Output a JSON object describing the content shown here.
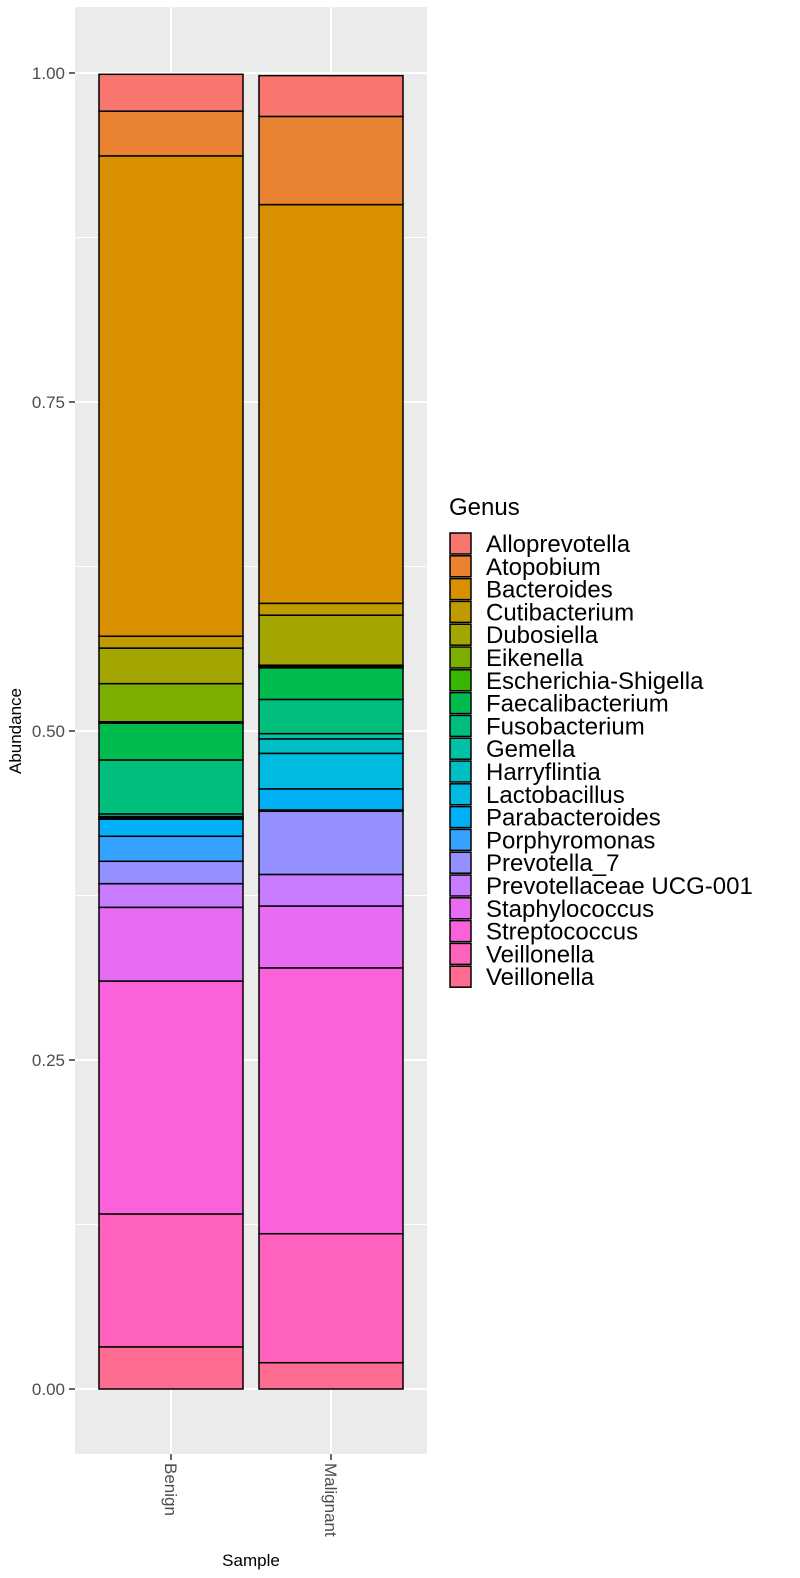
{
  "chart_data": {
    "type": "bar",
    "stacked": true,
    "normalized": true,
    "xlabel": "Sample",
    "ylabel": "Abundance",
    "ylim": [
      0,
      1
    ],
    "yticks": [
      "0.00",
      "0.25",
      "0.50",
      "0.75",
      "1.00"
    ],
    "ytick_values": [
      0,
      0.25,
      0.5,
      0.75,
      1.0
    ],
    "x_tick_rotation": "vertical",
    "categories": [
      "Benign",
      "Malignant"
    ],
    "legend": {
      "title": "Genus",
      "position": "right"
    },
    "grid": true,
    "bar_outline": "#000000",
    "series": [
      {
        "name": "Alloprevotella",
        "color": "#F8766D",
        "values": [
          0.028,
          0.031
        ]
      },
      {
        "name": "Atopobium",
        "color": "#EA8331",
        "values": [
          0.034,
          0.067
        ]
      },
      {
        "name": "Bacteroides",
        "color": "#D89000",
        "values": [
          0.365,
          0.303
        ]
      },
      {
        "name": "Cutibacterium",
        "color": "#C09B00",
        "values": [
          0.009,
          0.009
        ]
      },
      {
        "name": "Dubosiella",
        "color": "#A3A500",
        "values": [
          0.027,
          0.038
        ]
      },
      {
        "name": "Eikenella",
        "color": "#7CAE00",
        "values": [
          0.029,
          0.001
        ]
      },
      {
        "name": "Escherichia-Shigella",
        "color": "#39B600",
        "values": [
          0.001,
          0.001
        ]
      },
      {
        "name": "Faecalibacterium",
        "color": "#00BB4E",
        "values": [
          0.028,
          0.024
        ]
      },
      {
        "name": "Fusobacterium",
        "color": "#00BF7D",
        "values": [
          0.041,
          0.026
        ]
      },
      {
        "name": "Gemella",
        "color": "#00C1A3",
        "values": [
          0.002,
          0.004
        ]
      },
      {
        "name": "Harryflintia",
        "color": "#00BFC4",
        "values": [
          0.001,
          0.011
        ]
      },
      {
        "name": "Lactobacillus",
        "color": "#00BAE0",
        "values": [
          0.001,
          0.027
        ]
      },
      {
        "name": "Parabacteroides",
        "color": "#00B0F6",
        "values": [
          0.013,
          0.016
        ]
      },
      {
        "name": "Porphyromonas",
        "color": "#35A2FF",
        "values": [
          0.019,
          0.001
        ]
      },
      {
        "name": "Prevotella_7",
        "color": "#9590FF",
        "values": [
          0.017,
          0.048
        ]
      },
      {
        "name": "Prevotellaceae UCG-001",
        "color": "#C77CFF",
        "values": [
          0.018,
          0.024
        ]
      },
      {
        "name": "Staphylococcus",
        "color": "#E76BF3",
        "values": [
          0.056,
          0.047
        ]
      },
      {
        "name": "Streptococcus",
        "color": "#FA62DB",
        "values": [
          0.177,
          0.202
        ]
      },
      {
        "name": "Veillonella",
        "color": "#FF62BC",
        "values": [
          0.101,
          0.098
        ]
      },
      {
        "name": "Veillonella ",
        "color": "#FF6C91",
        "values": [
          0.032,
          0.02
        ]
      }
    ]
  }
}
